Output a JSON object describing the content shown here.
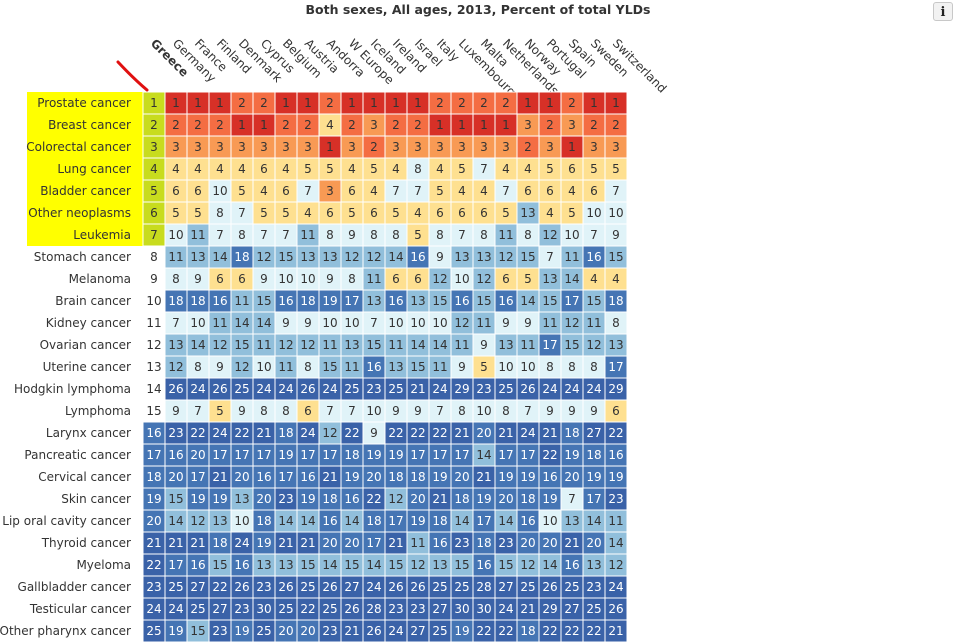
{
  "header": {
    "title": "Both sexes, All ages, 2013, Percent of total YLDs",
    "info_label": "i"
  },
  "selected_location": "Greece",
  "colors": {
    "rank_1": "#d73027",
    "rank_2": "#f46d43",
    "rank_3": "#f89a54",
    "rank_4_6": "#fee090",
    "rank_7_10": "#e0f3f8",
    "rank_11_15": "#91bfdb",
    "rank_16_20": "#4575b4",
    "rank_21_plus": "#3a62a8",
    "highlight": "#ffff00",
    "highlight_selected_col": "#c8dc1e",
    "selection_mark": "#e01010"
  },
  "chart_data": {
    "type": "heatmap",
    "title": "Both sexes, All ages, 2013, Percent of total YLDs",
    "columns": [
      "Greece",
      "Germany",
      "France",
      "Finland",
      "Denmark",
      "Cyprus",
      "Belgium",
      "Austria",
      "Andorra",
      "W Europe",
      "Iceland",
      "Ireland",
      "Israel",
      "Italy",
      "Luxembourg",
      "Malta",
      "Netherlands",
      "Norway",
      "Portugal",
      "Spain",
      "Sweden",
      "Switzerland"
    ],
    "rows": [
      {
        "label": "Prostate cancer",
        "values": [
          1,
          1,
          1,
          1,
          2,
          2,
          1,
          1,
          2,
          1,
          1,
          1,
          1,
          2,
          2,
          2,
          2,
          1,
          1,
          2,
          1,
          1
        ]
      },
      {
        "label": "Breast cancer",
        "values": [
          2,
          2,
          2,
          2,
          1,
          1,
          2,
          2,
          4,
          2,
          3,
          2,
          2,
          1,
          1,
          1,
          1,
          3,
          2,
          3,
          2,
          2
        ]
      },
      {
        "label": "Colorectal cancer",
        "values": [
          3,
          3,
          3,
          3,
          3,
          3,
          3,
          3,
          1,
          3,
          2,
          3,
          3,
          3,
          3,
          3,
          3,
          2,
          3,
          1,
          3,
          3
        ]
      },
      {
        "label": "Lung cancer",
        "values": [
          4,
          4,
          4,
          4,
          4,
          6,
          4,
          5,
          5,
          4,
          5,
          4,
          8,
          4,
          5,
          7,
          4,
          4,
          5,
          6,
          5,
          5
        ]
      },
      {
        "label": "Bladder cancer",
        "values": [
          5,
          6,
          6,
          10,
          5,
          4,
          6,
          7,
          3,
          6,
          4,
          7,
          7,
          5,
          4,
          4,
          7,
          6,
          6,
          4,
          6,
          7
        ]
      },
      {
        "label": "Other neoplasms",
        "values": [
          6,
          5,
          5,
          8,
          7,
          5,
          5,
          4,
          6,
          5,
          6,
          5,
          4,
          6,
          6,
          6,
          5,
          13,
          4,
          5,
          10,
          10
        ]
      },
      {
        "label": "Leukemia",
        "values": [
          7,
          10,
          11,
          7,
          8,
          7,
          7,
          11,
          8,
          9,
          8,
          8,
          5,
          8,
          7,
          8,
          11,
          8,
          12,
          10,
          7,
          9
        ]
      },
      {
        "label": "Stomach cancer",
        "values": [
          8,
          11,
          13,
          14,
          18,
          12,
          15,
          13,
          13,
          12,
          12,
          14,
          16,
          9,
          13,
          13,
          12,
          15,
          7,
          11,
          16,
          15
        ]
      },
      {
        "label": "Melanoma",
        "values": [
          9,
          8,
          9,
          6,
          6,
          9,
          10,
          10,
          9,
          8,
          11,
          6,
          6,
          12,
          10,
          12,
          6,
          5,
          13,
          14,
          4,
          4
        ]
      },
      {
        "label": "Brain cancer",
        "values": [
          10,
          18,
          18,
          16,
          11,
          15,
          16,
          18,
          19,
          17,
          13,
          16,
          13,
          15,
          16,
          15,
          16,
          14,
          15,
          17,
          15,
          18
        ]
      },
      {
        "label": "Kidney cancer",
        "values": [
          11,
          7,
          10,
          11,
          14,
          14,
          9,
          9,
          10,
          10,
          7,
          10,
          10,
          10,
          12,
          11,
          9,
          9,
          11,
          12,
          11,
          8
        ]
      },
      {
        "label": "Ovarian cancer",
        "values": [
          12,
          13,
          14,
          12,
          15,
          11,
          12,
          12,
          11,
          13,
          15,
          11,
          14,
          14,
          11,
          9,
          13,
          11,
          17,
          15,
          12,
          13
        ]
      },
      {
        "label": "Uterine cancer",
        "values": [
          13,
          12,
          8,
          9,
          12,
          10,
          11,
          8,
          15,
          11,
          16,
          13,
          15,
          11,
          9,
          5,
          10,
          10,
          8,
          8,
          8,
          17
        ]
      },
      {
        "label": "Hodgkin lymphoma",
        "values": [
          14,
          26,
          24,
          26,
          25,
          24,
          24,
          26,
          24,
          25,
          23,
          25,
          21,
          24,
          29,
          23,
          25,
          26,
          24,
          24,
          24,
          29
        ]
      },
      {
        "label": "Lymphoma",
        "values": [
          15,
          9,
          7,
          5,
          9,
          8,
          8,
          6,
          7,
          7,
          10,
          9,
          9,
          7,
          8,
          10,
          8,
          7,
          9,
          9,
          9,
          6
        ]
      },
      {
        "label": "Larynx cancer",
        "values": [
          16,
          23,
          22,
          24,
          22,
          21,
          18,
          24,
          12,
          22,
          9,
          22,
          22,
          22,
          21,
          20,
          21,
          24,
          21,
          18,
          27,
          22
        ]
      },
      {
        "label": "Pancreatic cancer",
        "values": [
          17,
          16,
          20,
          17,
          17,
          17,
          19,
          17,
          17,
          18,
          19,
          19,
          17,
          17,
          17,
          14,
          17,
          17,
          22,
          19,
          18,
          16
        ]
      },
      {
        "label": "Cervical cancer",
        "values": [
          18,
          20,
          17,
          21,
          20,
          16,
          17,
          16,
          21,
          19,
          20,
          18,
          18,
          19,
          20,
          21,
          19,
          19,
          16,
          20,
          19,
          19
        ]
      },
      {
        "label": "Skin cancer",
        "values": [
          19,
          15,
          19,
          19,
          13,
          20,
          23,
          19,
          18,
          16,
          22,
          12,
          20,
          21,
          18,
          19,
          20,
          18,
          19,
          7,
          17,
          23
        ]
      },
      {
        "label": "Lip oral cavity cancer",
        "values": [
          20,
          14,
          12,
          13,
          10,
          18,
          14,
          14,
          16,
          14,
          18,
          17,
          19,
          18,
          14,
          17,
          14,
          16,
          10,
          13,
          14,
          11
        ]
      },
      {
        "label": "Thyroid cancer",
        "values": [
          21,
          21,
          21,
          18,
          24,
          19,
          21,
          21,
          20,
          20,
          17,
          21,
          11,
          16,
          23,
          18,
          23,
          20,
          20,
          21,
          20,
          14
        ]
      },
      {
        "label": "Myeloma",
        "values": [
          22,
          17,
          16,
          15,
          16,
          13,
          13,
          15,
          14,
          15,
          14,
          15,
          12,
          13,
          15,
          16,
          15,
          12,
          14,
          16,
          13,
          12
        ]
      },
      {
        "label": "Gallbladder cancer",
        "values": [
          23,
          25,
          27,
          22,
          26,
          23,
          26,
          25,
          26,
          27,
          24,
          26,
          26,
          25,
          25,
          28,
          27,
          25,
          26,
          25,
          23,
          24
        ]
      },
      {
        "label": "Testicular cancer",
        "values": [
          24,
          24,
          25,
          27,
          23,
          30,
          25,
          22,
          25,
          26,
          28,
          23,
          23,
          27,
          30,
          30,
          24,
          21,
          29,
          27,
          25,
          26
        ]
      },
      {
        "label": "Other pharynx cancer",
        "values": [
          25,
          19,
          15,
          23,
          19,
          25,
          20,
          20,
          23,
          21,
          26,
          24,
          27,
          25,
          19,
          22,
          22,
          18,
          22,
          22,
          22,
          21
        ]
      }
    ]
  }
}
